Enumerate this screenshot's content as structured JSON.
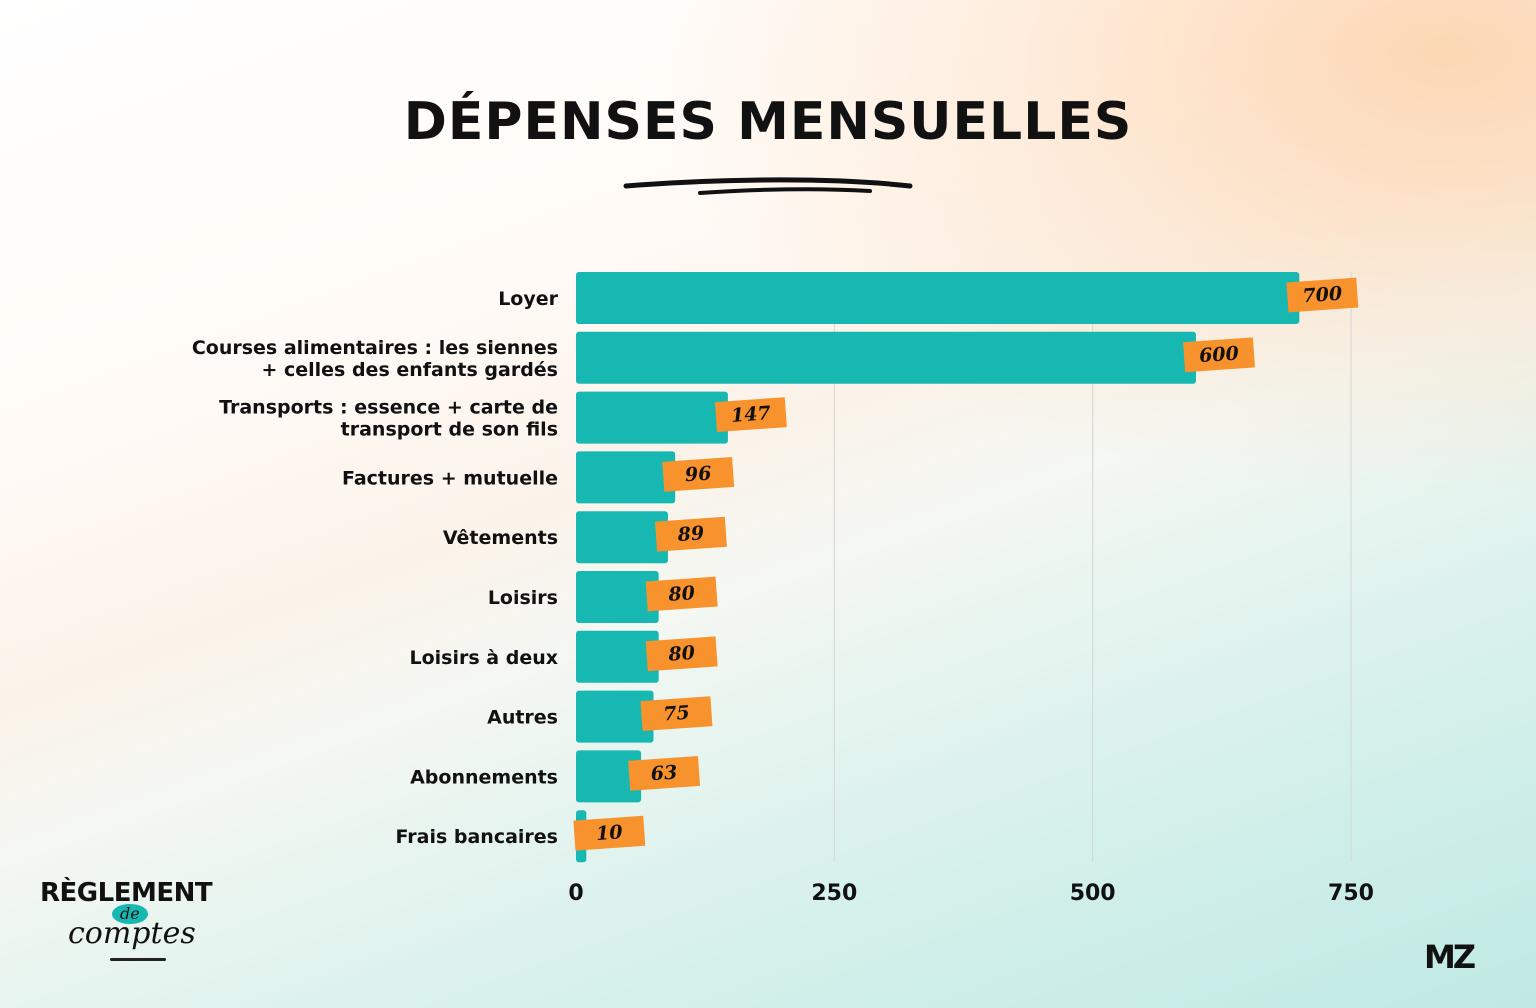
{
  "page": {
    "title": "DÉPENSES MENSUELLES",
    "brand_top": "RÈGLEMENT",
    "brand_de": "de",
    "brand_bottom": "comptes",
    "logo_mark": "MZ"
  },
  "colors": {
    "bar": "#16b8b1",
    "label_bg": "#f7922d",
    "text": "#111111",
    "grid": "#d5d5d5"
  },
  "chart_data": {
    "type": "bar",
    "orientation": "horizontal",
    "title": "DÉPENSES MENSUELLES",
    "categories": [
      [
        "Loyer"
      ],
      [
        "Courses alimentaires : les siennes",
        "+ celles des enfants gardés"
      ],
      [
        "Transports : essence + carte de",
        "transport de son fils"
      ],
      [
        "Factures + mutuelle"
      ],
      [
        "Vêtements"
      ],
      [
        "Loisirs"
      ],
      [
        "Loisirs à deux"
      ],
      [
        "Autres"
      ],
      [
        "Abonnements"
      ],
      [
        "Frais bancaires"
      ]
    ],
    "values": [
      700,
      600,
      147,
      96,
      89,
      80,
      80,
      75,
      63,
      10
    ],
    "xticks": [
      0,
      250,
      500,
      750
    ],
    "xlim": [
      0,
      750
    ],
    "grid": true,
    "xlabel": "",
    "ylabel": ""
  }
}
